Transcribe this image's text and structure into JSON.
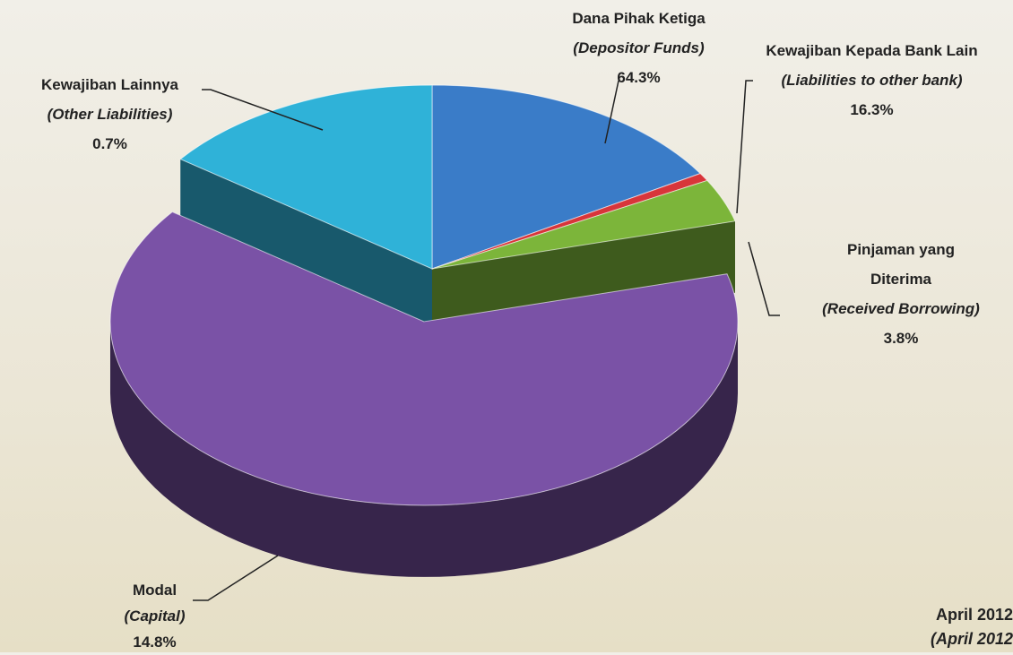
{
  "chart_data": {
    "type": "pie3d",
    "subtitle": "April 2012",
    "subtitle_en": "(April 2012",
    "series": [
      {
        "name": "Kewajiban Kepada Bank Lain",
        "name_en": "(Liabilities to other bank)",
        "value": 16.3,
        "value_label": "16.3%",
        "color": "#3a7cc8"
      },
      {
        "name": "Kewajiban Lainnya",
        "name_en": "(Other Liabilities)",
        "value": 0.7,
        "value_label": "0.7%",
        "color": "#d8353a"
      },
      {
        "name": "Pinjaman yang Diterima",
        "name_en": "(Received Borrowing)",
        "value": 3.8,
        "value_label": "3.8%",
        "color": "#7cb53a"
      },
      {
        "name": "Dana Pihak Ketiga",
        "name_en": "(Depositor Funds)",
        "value": 64.3,
        "value_label": "64.3%",
        "color": "#7a52a6"
      },
      {
        "name": "Modal",
        "name_en": "(Capital)",
        "value": 14.8,
        "value_label": "14.8%",
        "color": "#2fb2d8"
      }
    ]
  }
}
